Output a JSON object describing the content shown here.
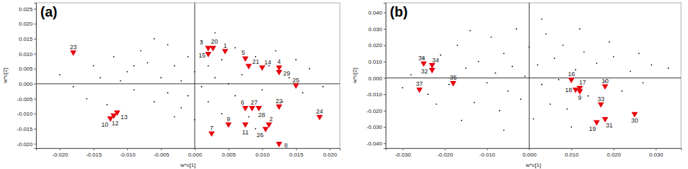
{
  "chart_data": [
    {
      "type": "scatter",
      "title": "(a)",
      "x_label": "w*c[1]",
      "y_label": "w*c[2]",
      "xlim": [
        -0.0235,
        0.0215
      ],
      "ylim": [
        -0.0215,
        0.027
      ],
      "xticks": [
        {
          "value": -0.02,
          "label": "-0.020"
        },
        {
          "value": -0.015,
          "label": "-0.015"
        },
        {
          "value": -0.01,
          "label": "-0.010"
        },
        {
          "value": -0.005,
          "label": "-0.005"
        },
        {
          "value": 0,
          "label": "0.000"
        },
        {
          "value": 0.005,
          "label": "0.005"
        },
        {
          "value": 0.01,
          "label": "0.010"
        },
        {
          "value": 0.015,
          "label": "0.015"
        },
        {
          "value": 0.02,
          "label": "0.020"
        }
      ],
      "yticks": [
        {
          "value": -0.02,
          "label": "-0.020"
        },
        {
          "value": -0.015,
          "label": "-0.015"
        },
        {
          "value": -0.01,
          "label": "-0.010"
        },
        {
          "value": -0.005,
          "label": "-0.005"
        },
        {
          "value": 0,
          "label": "0.000"
        },
        {
          "value": 0.005,
          "label": "0.005"
        },
        {
          "value": 0.01,
          "label": "0.010"
        },
        {
          "value": 0.015,
          "label": "0.015"
        },
        {
          "value": 0.02,
          "label": "0.020"
        },
        {
          "value": 0.025,
          "label": "0.025"
        }
      ],
      "series": [
        {
          "color": "#000000",
          "marker": "dot",
          "x": [
            -0.015,
            -0.012,
            -0.01,
            -0.009,
            -0.008,
            -0.007,
            -0.006,
            -0.005,
            -0.004,
            -0.004,
            -0.003,
            -0.002,
            -0.002,
            -0.001,
            -0.001,
            0.0,
            0.001,
            0.001,
            0.002,
            0.002,
            0.003,
            0.004,
            0.004,
            0.005,
            0.006,
            0.006,
            0.007,
            0.008,
            0.009,
            0.01,
            0.011,
            0.013,
            0.014,
            0.016,
            0.017,
            -0.018,
            -0.016,
            -0.013,
            -0.011,
            -0.014,
            -0.006,
            0.0,
            -0.003,
            0.003,
            -0.009,
            0.012,
            0.015,
            -0.02,
            0.019,
            0.009
          ],
          "values": [
            0.006,
            0.009,
            0.004,
            -0.002,
            0.011,
            0.007,
            -0.006,
            0.002,
            0.013,
            -0.003,
            0.006,
            -0.008,
            0.001,
            0.009,
            -0.004,
            0.004,
            -0.001,
            0.014,
            0.006,
            -0.006,
            0.002,
            -0.01,
            0.008,
            0.0,
            0.012,
            -0.004,
            0.003,
            -0.011,
            0.009,
            -0.002,
            0.006,
            -0.006,
            0.002,
            -0.003,
            0.005,
            -0.001,
            -0.005,
            -0.007,
            0.001,
            0.002,
            0.015,
            -0.012,
            -0.011,
            0.017,
            0.006,
            0.011,
            0.008,
            0.003,
            -0.001,
            -0.015
          ]
        },
        {
          "color": "#e8000b",
          "marker": "triangle-down",
          "labels": [
            "1",
            "3",
            "20",
            "15",
            "5",
            "21",
            "14",
            "4",
            "29",
            "25",
            "23",
            "10",
            "12",
            "13",
            "27",
            "6",
            "28",
            "22",
            "9",
            "7",
            "11",
            "2",
            "26",
            "8",
            "24"
          ],
          "x": [
            0.0045,
            0.002,
            0.0027,
            0.002,
            0.0075,
            0.008,
            0.01,
            0.0125,
            0.0125,
            0.015,
            -0.018,
            -0.0125,
            -0.012,
            -0.0115,
            0.0085,
            0.0075,
            0.0095,
            0.0125,
            0.005,
            0.0025,
            0.0075,
            0.011,
            0.0105,
            0.0125,
            0.0185
          ],
          "values": [
            0.011,
            0.012,
            0.012,
            0.01,
            0.0085,
            0.006,
            0.0055,
            0.0055,
            0.004,
            -0.0005,
            0.0105,
            -0.0115,
            -0.0105,
            -0.0095,
            -0.008,
            -0.008,
            -0.008,
            -0.0075,
            -0.0135,
            -0.0165,
            -0.0135,
            -0.0135,
            -0.015,
            -0.02,
            -0.011
          ]
        }
      ]
    },
    {
      "type": "scatter",
      "title": "(b)",
      "x_label": "w*c[1]",
      "y_label": "w*c[2]",
      "xlim": [
        -0.034,
        0.036
      ],
      "ylim": [
        -0.043,
        0.046
      ],
      "xticks": [
        {
          "value": -0.03,
          "label": "-0.030"
        },
        {
          "value": -0.02,
          "label": "-0.020"
        },
        {
          "value": -0.01,
          "label": "-0.010"
        },
        {
          "value": 0,
          "label": "0.000"
        },
        {
          "value": 0.01,
          "label": "0.010"
        },
        {
          "value": 0.02,
          "label": "0.020"
        },
        {
          "value": 0.03,
          "label": "0.030"
        }
      ],
      "yticks": [
        {
          "value": -0.04,
          "label": "-0.040"
        },
        {
          "value": -0.03,
          "label": "-0.030"
        },
        {
          "value": -0.02,
          "label": "-0.020"
        },
        {
          "value": -0.01,
          "label": "-0.010"
        },
        {
          "value": 0,
          "label": "0.000"
        },
        {
          "value": 0.01,
          "label": "0.010"
        },
        {
          "value": 0.02,
          "label": "0.020"
        },
        {
          "value": 0.03,
          "label": "0.030"
        },
        {
          "value": 0.04,
          "label": "0.040"
        }
      ],
      "series": [
        {
          "color": "#000000",
          "marker": "dot",
          "x": [
            -0.028,
            -0.024,
            -0.021,
            -0.019,
            -0.017,
            -0.015,
            -0.013,
            -0.012,
            -0.01,
            -0.009,
            -0.008,
            -0.007,
            -0.006,
            -0.005,
            -0.004,
            -0.003,
            -0.002,
            -0.001,
            0.0,
            0.001,
            0.002,
            0.003,
            0.004,
            0.005,
            0.006,
            0.007,
            0.008,
            0.009,
            0.011,
            0.013,
            0.014,
            0.016,
            0.018,
            0.02,
            0.022,
            0.024,
            0.027,
            0.029,
            -0.025,
            -0.022,
            0.003,
            -0.006,
            0.01,
            0.012,
            -0.014,
            0.019,
            0.026,
            -0.03,
            0.033,
            -0.016
          ],
          "values": [
            0.002,
            -0.01,
            0.014,
            -0.004,
            0.02,
            0.006,
            -0.015,
            0.01,
            -0.003,
            0.025,
            0.003,
            -0.02,
            0.015,
            -0.008,
            0.007,
            0.03,
            -0.013,
            0.001,
            0.019,
            -0.025,
            0.008,
            -0.004,
            0.027,
            -0.016,
            0.012,
            -0.001,
            0.02,
            -0.019,
            0.005,
            0.016,
            -0.011,
            0.009,
            -0.002,
            0.013,
            -0.008,
            0.004,
            -0.003,
            0.008,
            0.012,
            -0.016,
            0.036,
            -0.032,
            -0.03,
            0.03,
            0.029,
            0.022,
            0.015,
            -0.006,
            0.006,
            -0.026
          ]
        },
        {
          "color": "#e8000b",
          "marker": "triangle-down",
          "labels": [
            "36",
            "34",
            "32",
            "35",
            "37",
            "16",
            "17",
            "18",
            "9",
            "10",
            "33",
            "19",
            "31",
            "30"
          ],
          "x": [
            -0.025,
            -0.023,
            -0.023,
            -0.018,
            -0.026,
            0.01,
            0.012,
            0.011,
            0.012,
            0.018,
            0.017,
            0.016,
            0.018,
            0.025
          ],
          "values": [
            0.009,
            0.008,
            0.005,
            -0.003,
            -0.007,
            -0.001,
            -0.006,
            -0.007,
            -0.008,
            -0.005,
            -0.016,
            -0.027,
            -0.025,
            -0.022
          ]
        }
      ]
    }
  ]
}
